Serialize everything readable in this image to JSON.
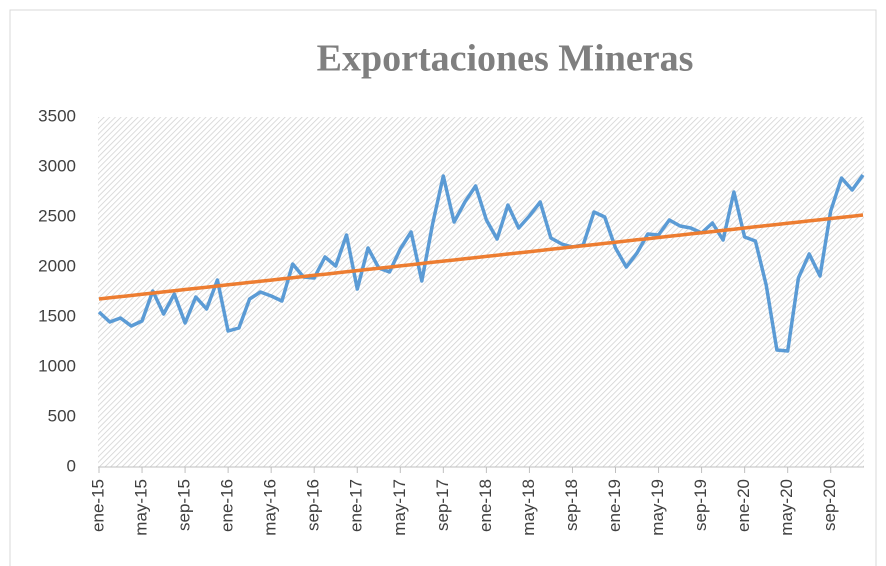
{
  "chart_data": {
    "type": "line",
    "title": "Exportaciones Mineras",
    "categories": [
      "ene-15",
      null,
      null,
      null,
      "may-15",
      null,
      null,
      null,
      "sep-15",
      null,
      null,
      null,
      "ene-16",
      null,
      null,
      null,
      "may-16",
      null,
      null,
      null,
      "sep-16",
      null,
      null,
      null,
      "ene-17",
      null,
      null,
      null,
      "may-17",
      null,
      null,
      null,
      "sep-17",
      null,
      null,
      null,
      "ene-18",
      null,
      null,
      null,
      "may-18",
      null,
      null,
      null,
      "sep-18",
      null,
      null,
      null,
      "ene-19",
      null,
      null,
      null,
      "may-19",
      null,
      null,
      null,
      "sep-19",
      null,
      null,
      null,
      "ene-20",
      null,
      null,
      null,
      "may-20",
      null,
      null,
      null,
      "sep-20",
      null,
      null,
      null
    ],
    "series": [
      {
        "color": "#5b9bd5",
        "values": [
          1550,
          1450,
          1490,
          1410,
          1460,
          1760,
          1530,
          1730,
          1440,
          1700,
          1580,
          1870,
          1360,
          1390,
          1680,
          1750,
          1710,
          1660,
          2030,
          1900,
          1890,
          2100,
          2010,
          2320,
          1780,
          2190,
          1990,
          1950,
          2180,
          2350,
          1860,
          2430,
          2910,
          2450,
          2650,
          2810,
          2470,
          2280,
          2620,
          2390,
          2510,
          2650,
          2290,
          2230,
          2200,
          2220,
          2550,
          2500,
          2190,
          2000,
          2140,
          2330,
          2320,
          2470,
          2410,
          2390,
          2340,
          2440,
          2270,
          2750,
          2300,
          2260,
          1820,
          1170,
          1160,
          1890,
          2130,
          1910,
          2560,
          2890,
          2770,
          2920
        ]
      },
      {
        "color": "#ed7d31",
        "values": [
          1680,
          1692,
          1704,
          1715,
          1727,
          1739,
          1751,
          1763,
          1775,
          1786,
          1798,
          1810,
          1822,
          1834,
          1846,
          1857,
          1869,
          1881,
          1893,
          1905,
          1917,
          1928,
          1940,
          1952,
          1964,
          1976,
          1988,
          1999,
          2011,
          2023,
          2035,
          2047,
          2059,
          2070,
          2082,
          2094,
          2106,
          2118,
          2130,
          2141,
          2153,
          2165,
          2177,
          2189,
          2201,
          2212,
          2224,
          2236,
          2248,
          2260,
          2272,
          2283,
          2295,
          2307,
          2319,
          2331,
          2343,
          2354,
          2366,
          2378,
          2390,
          2402,
          2414,
          2425,
          2437,
          2449,
          2461,
          2473,
          2485,
          2496,
          2508,
          2520
        ]
      }
    ],
    "ylim": [
      0,
      3500
    ],
    "yticks": [
      0,
      500,
      1000,
      1500,
      2000,
      2500,
      3000,
      3500
    ],
    "grid": false
  }
}
